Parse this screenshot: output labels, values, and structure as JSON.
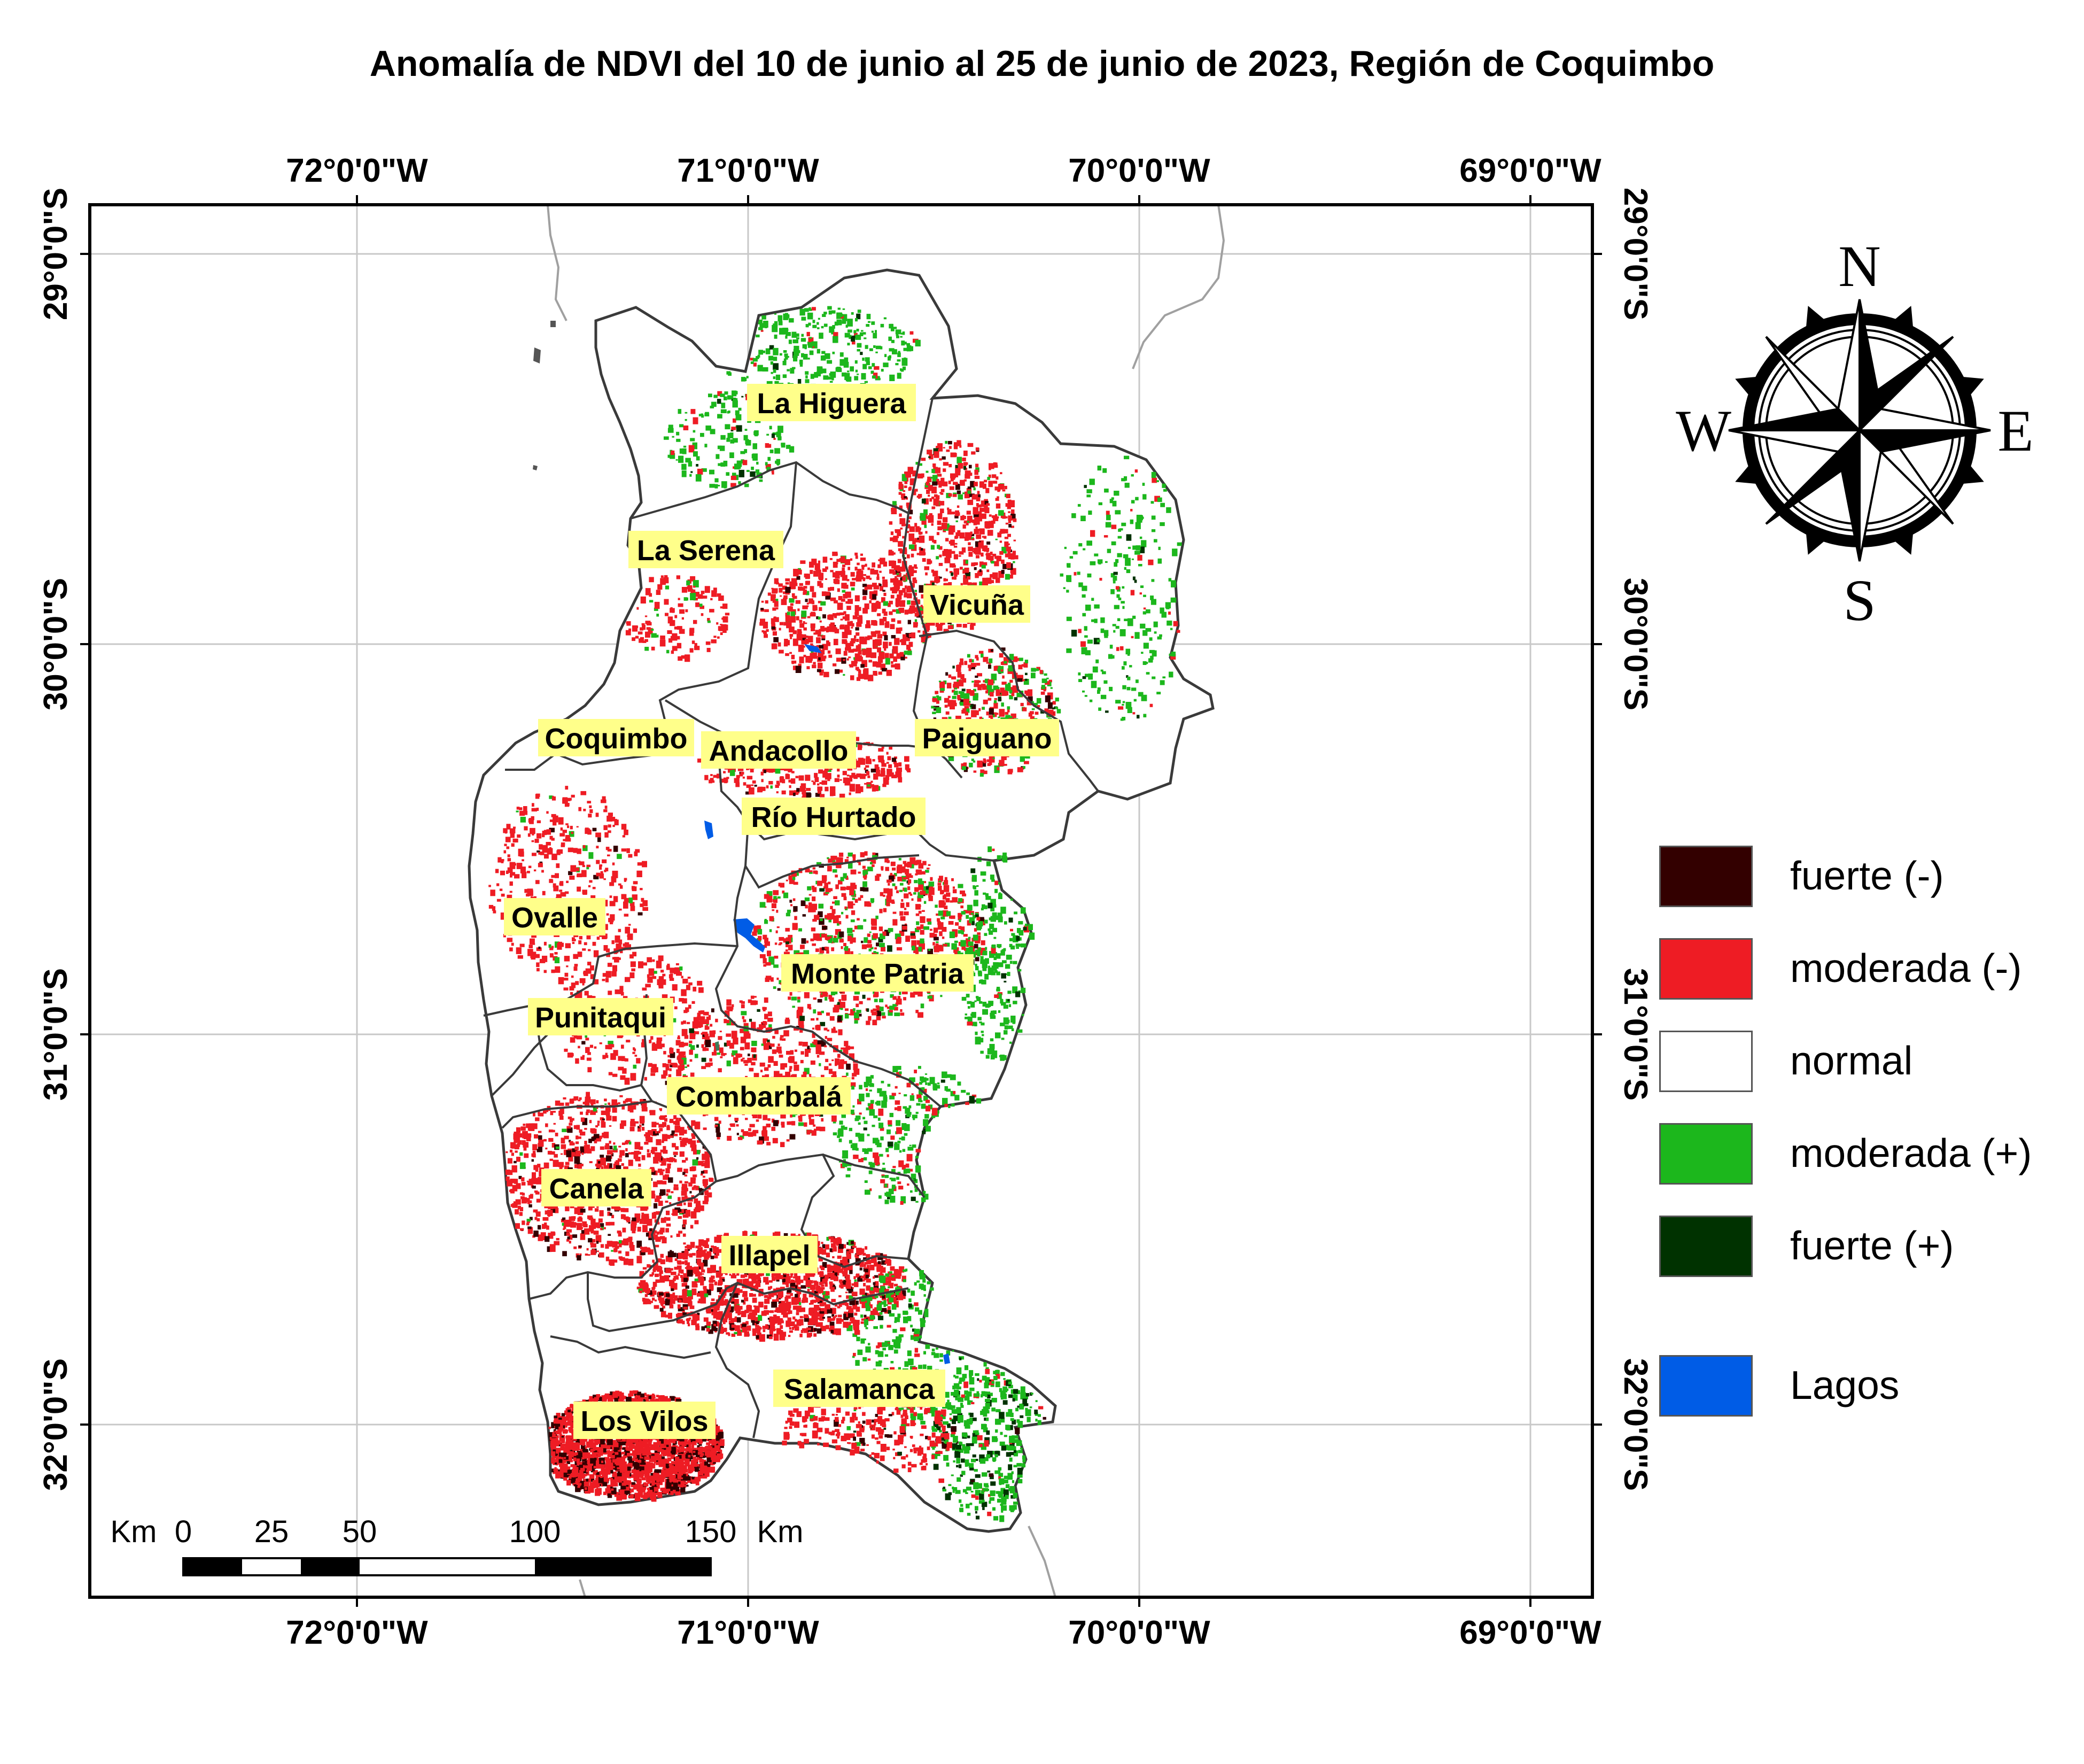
{
  "title": "Anomalía de NDVI del 10 de junio al 25 de junio de 2023, Región de Coquimbo",
  "grid": {
    "lon_labels": [
      "72°0'0\"W",
      "71°0'0\"W",
      "70°0'0\"W",
      "69°0'0\"W"
    ],
    "lat_labels": [
      "29°0'0\"S",
      "30°0'0\"S",
      "31°0'0\"S",
      "32°0'0\"S"
    ]
  },
  "communes": [
    {
      "name": "La Higuera"
    },
    {
      "name": "La Serena"
    },
    {
      "name": "Vicuña"
    },
    {
      "name": "Coquimbo"
    },
    {
      "name": "Andacollo"
    },
    {
      "name": "Paiguano"
    },
    {
      "name": "Río Hurtado"
    },
    {
      "name": "Ovalle"
    },
    {
      "name": "Monte Patria"
    },
    {
      "name": "Punitaqui"
    },
    {
      "name": "Combarbalá"
    },
    {
      "name": "Canela"
    },
    {
      "name": "Illapel"
    },
    {
      "name": "Salamanca"
    },
    {
      "name": "Los Vilos"
    }
  ],
  "compass": {
    "n": "N",
    "s": "S",
    "e": "E",
    "w": "W"
  },
  "scale_bar": {
    "unit_left": "Km",
    "unit_right": "Km",
    "ticks": [
      "0",
      "25",
      "50",
      "100",
      "150"
    ]
  },
  "legend": [
    {
      "label": "fuerte (-)",
      "color": "#330000"
    },
    {
      "label": "moderada (-)",
      "color": "#ee1c24"
    },
    {
      "label": "normal",
      "color": "#ffffff"
    },
    {
      "label": "moderada (+)",
      "color": "#1cb71c"
    },
    {
      "label": "fuerte (+)",
      "color": "#003200"
    },
    {
      "label": "Lagos",
      "color": "#005ce6"
    }
  ],
  "colors": {
    "strong_negative": "#330000",
    "moderate_negative": "#ee1c24",
    "moderate_positive": "#1cb71c",
    "strong_positive": "#003200",
    "lakes": "#005ce6",
    "label_highlight": "#ffff8a"
  }
}
